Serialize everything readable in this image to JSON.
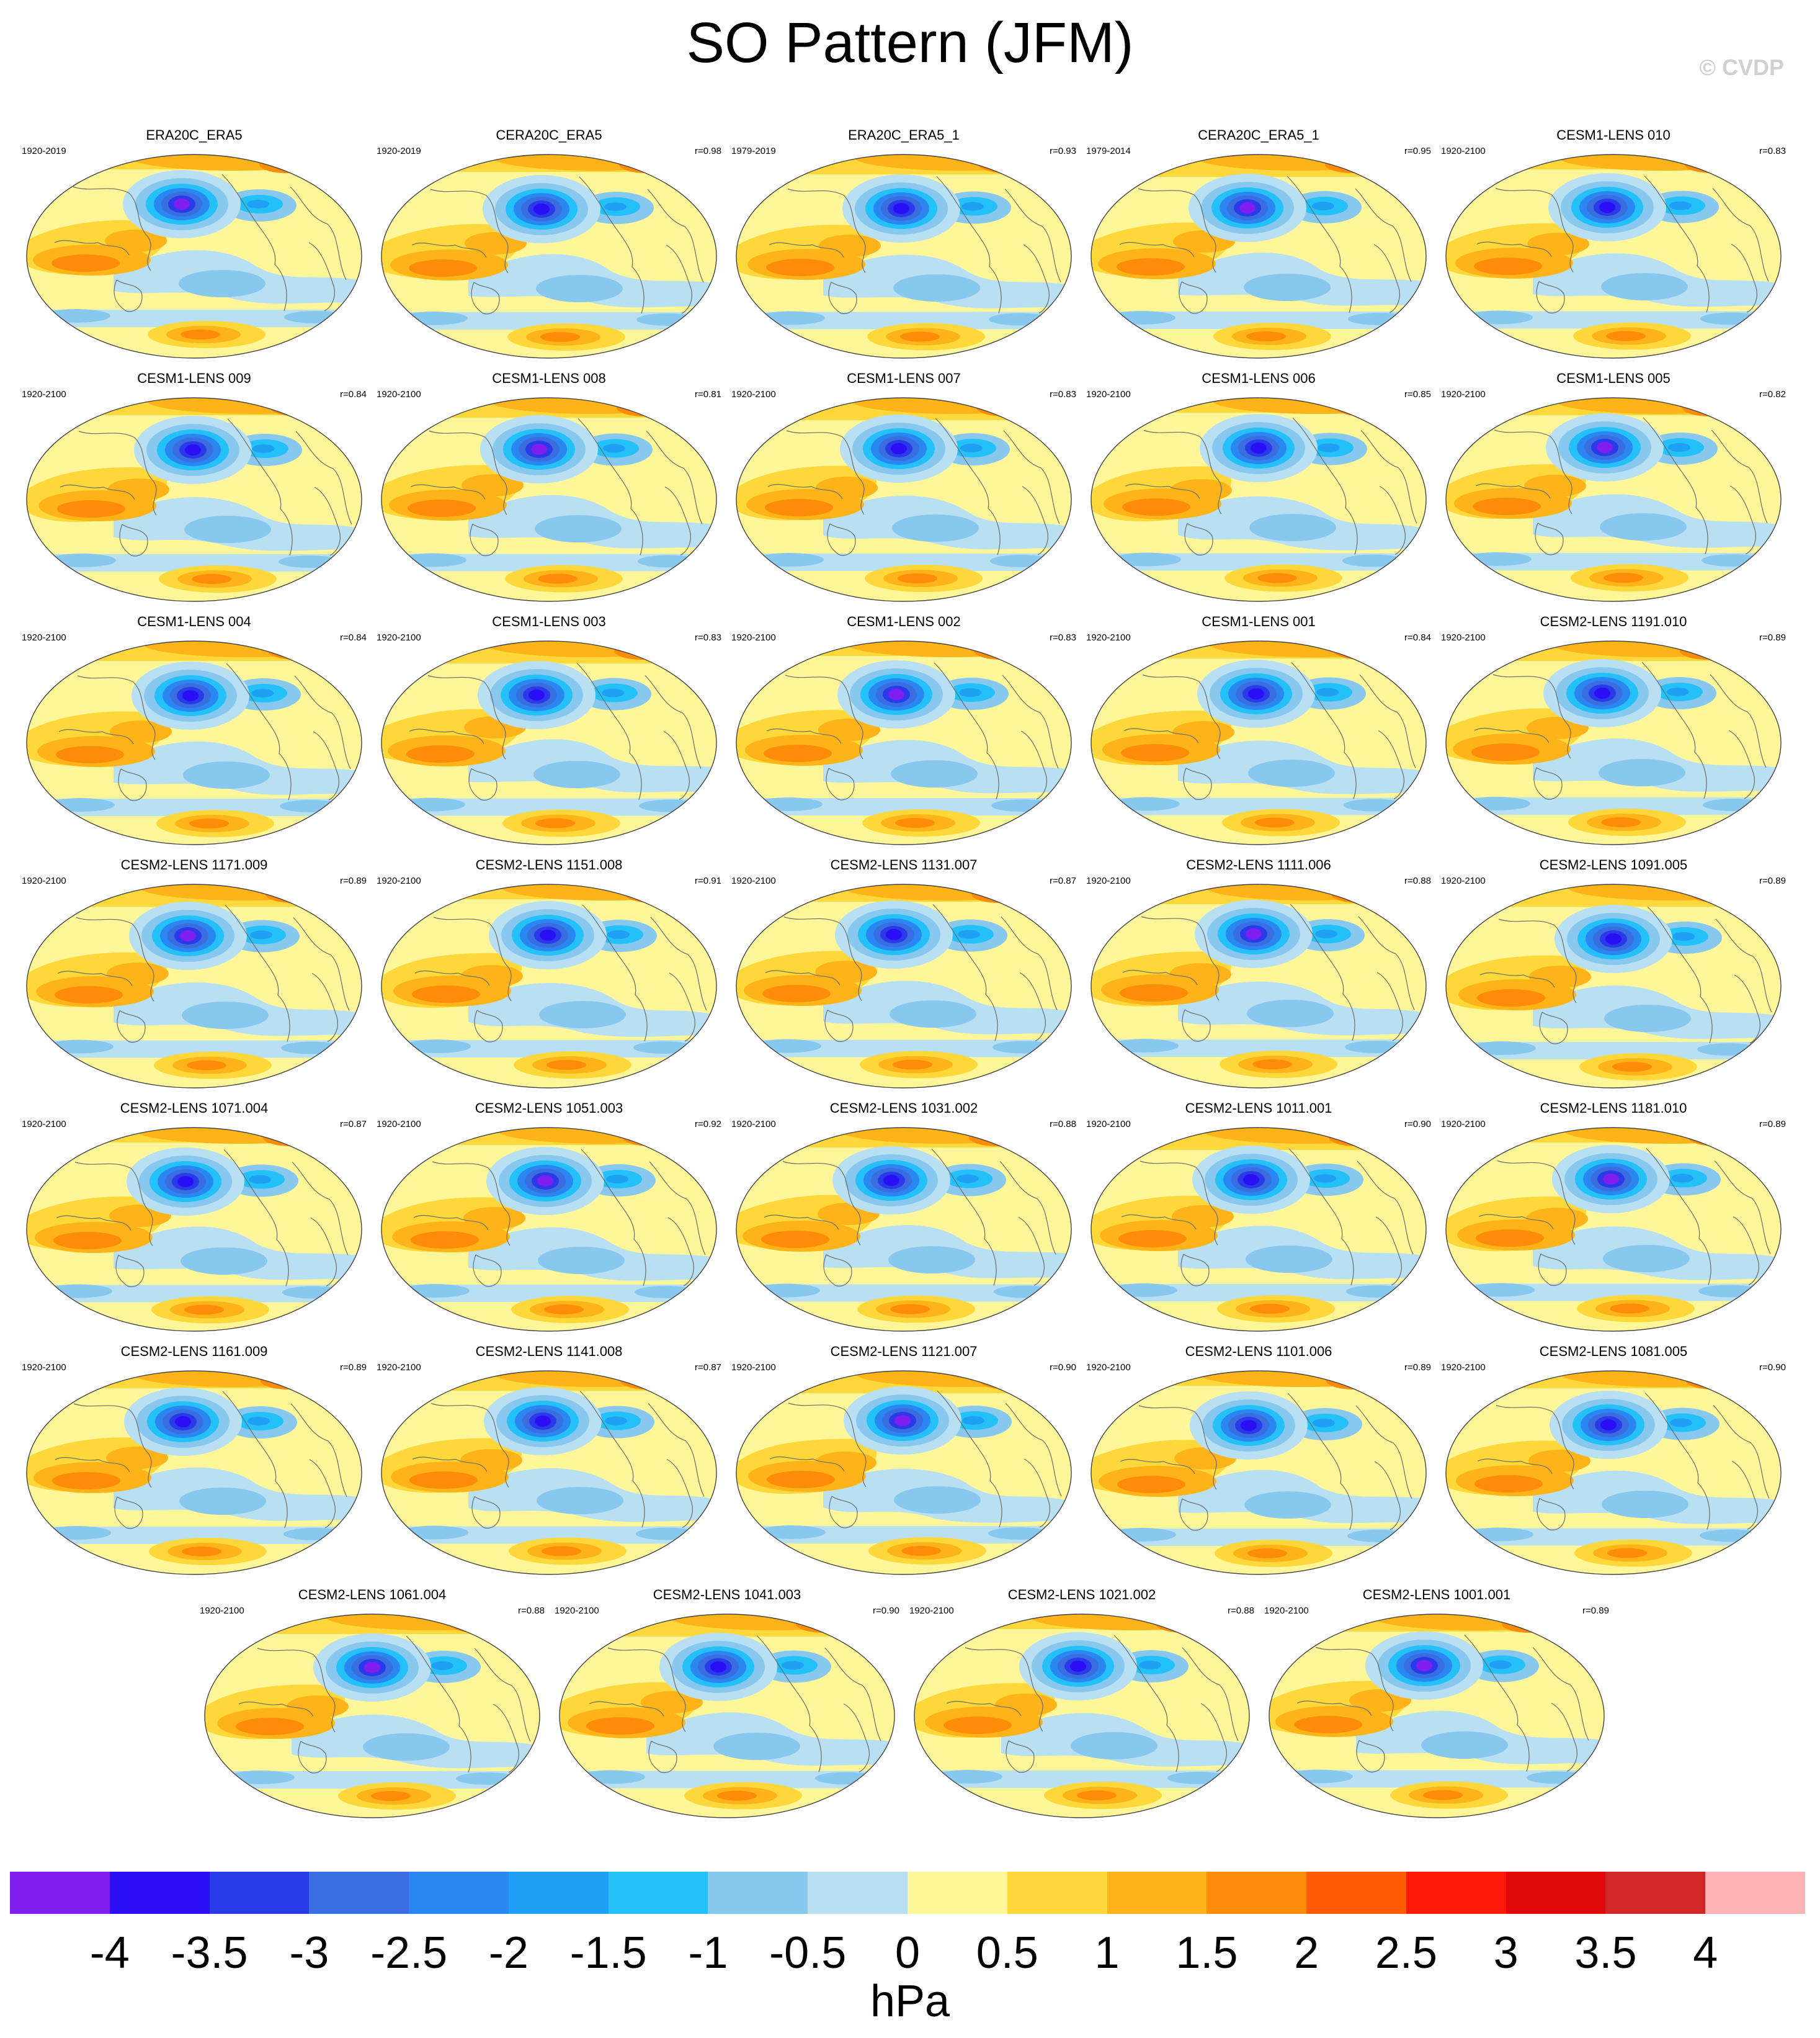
{
  "title": "SO Pattern (JFM)",
  "watermark": "© CVDP",
  "units": "hPa",
  "panels": [
    {
      "name": "ERA20C_ERA5",
      "years": "1920-2019",
      "r": ""
    },
    {
      "name": "CERA20C_ERA5",
      "years": "1920-2019",
      "r": "r=0.98"
    },
    {
      "name": "ERA20C_ERA5_1",
      "years": "1979-2019",
      "r": "r=0.93"
    },
    {
      "name": "CERA20C_ERA5_1",
      "years": "1979-2014",
      "r": "r=0.95"
    },
    {
      "name": "CESM1-LENS 010",
      "years": "1920-2100",
      "r": "r=0.83"
    },
    {
      "name": "CESM1-LENS 009",
      "years": "1920-2100",
      "r": "r=0.84"
    },
    {
      "name": "CESM1-LENS 008",
      "years": "1920-2100",
      "r": "r=0.81"
    },
    {
      "name": "CESM1-LENS 007",
      "years": "1920-2100",
      "r": "r=0.83"
    },
    {
      "name": "CESM1-LENS 006",
      "years": "1920-2100",
      "r": "r=0.85"
    },
    {
      "name": "CESM1-LENS 005",
      "years": "1920-2100",
      "r": "r=0.82"
    },
    {
      "name": "CESM1-LENS 004",
      "years": "1920-2100",
      "r": "r=0.84"
    },
    {
      "name": "CESM1-LENS 003",
      "years": "1920-2100",
      "r": "r=0.83"
    },
    {
      "name": "CESM1-LENS 002",
      "years": "1920-2100",
      "r": "r=0.83"
    },
    {
      "name": "CESM1-LENS 001",
      "years": "1920-2100",
      "r": "r=0.84"
    },
    {
      "name": "CESM2-LENS 1191.010",
      "years": "1920-2100",
      "r": "r=0.89"
    },
    {
      "name": "CESM2-LENS 1171.009",
      "years": "1920-2100",
      "r": "r=0.89"
    },
    {
      "name": "CESM2-LENS 1151.008",
      "years": "1920-2100",
      "r": "r=0.91"
    },
    {
      "name": "CESM2-LENS 1131.007",
      "years": "1920-2100",
      "r": "r=0.87"
    },
    {
      "name": "CESM2-LENS 1111.006",
      "years": "1920-2100",
      "r": "r=0.88"
    },
    {
      "name": "CESM2-LENS 1091.005",
      "years": "1920-2100",
      "r": "r=0.89"
    },
    {
      "name": "CESM2-LENS 1071.004",
      "years": "1920-2100",
      "r": "r=0.87"
    },
    {
      "name": "CESM2-LENS 1051.003",
      "years": "1920-2100",
      "r": "r=0.92"
    },
    {
      "name": "CESM2-LENS 1031.002",
      "years": "1920-2100",
      "r": "r=0.88"
    },
    {
      "name": "CESM2-LENS 1011.001",
      "years": "1920-2100",
      "r": "r=0.90"
    },
    {
      "name": "CESM2-LENS 1181.010",
      "years": "1920-2100",
      "r": "r=0.89"
    },
    {
      "name": "CESM2-LENS 1161.009",
      "years": "1920-2100",
      "r": "r=0.89"
    },
    {
      "name": "CESM2-LENS 1141.008",
      "years": "1920-2100",
      "r": "r=0.87"
    },
    {
      "name": "CESM2-LENS 1121.007",
      "years": "1920-2100",
      "r": "r=0.90"
    },
    {
      "name": "CESM2-LENS 1101.006",
      "years": "1920-2100",
      "r": "r=0.89"
    },
    {
      "name": "CESM2-LENS 1081.005",
      "years": "1920-2100",
      "r": "r=0.90"
    },
    {
      "name": "CESM2-LENS 1061.004",
      "years": "1920-2100",
      "r": "r=0.88"
    },
    {
      "name": "CESM2-LENS 1041.003",
      "years": "1920-2100",
      "r": "r=0.90"
    },
    {
      "name": "CESM2-LENS 1021.002",
      "years": "1920-2100",
      "r": "r=0.88"
    },
    {
      "name": "CESM2-LENS 1001.001",
      "years": "1920-2100",
      "r": "r=0.89"
    }
  ],
  "colorbar": {
    "labels": [
      "-4",
      "-3.5",
      "-3",
      "-2.5",
      "-2",
      "-1.5",
      "-1",
      "-0.5",
      "0",
      "0.5",
      "1",
      "1.5",
      "2",
      "2.5",
      "3",
      "3.5",
      "4"
    ],
    "colors": [
      "#7f1fef",
      "#2b0ff4",
      "#2a3ae8",
      "#3a6ee0",
      "#2a86f0",
      "#1ea0f5",
      "#24c0f8",
      "#88c8ee",
      "#b8e0f2",
      "#fef698",
      "#fed83a",
      "#feb418",
      "#fe8c08",
      "#fe5a04",
      "#fe1a08",
      "#e00808",
      "#d02828",
      "#feb4b4"
    ]
  }
}
